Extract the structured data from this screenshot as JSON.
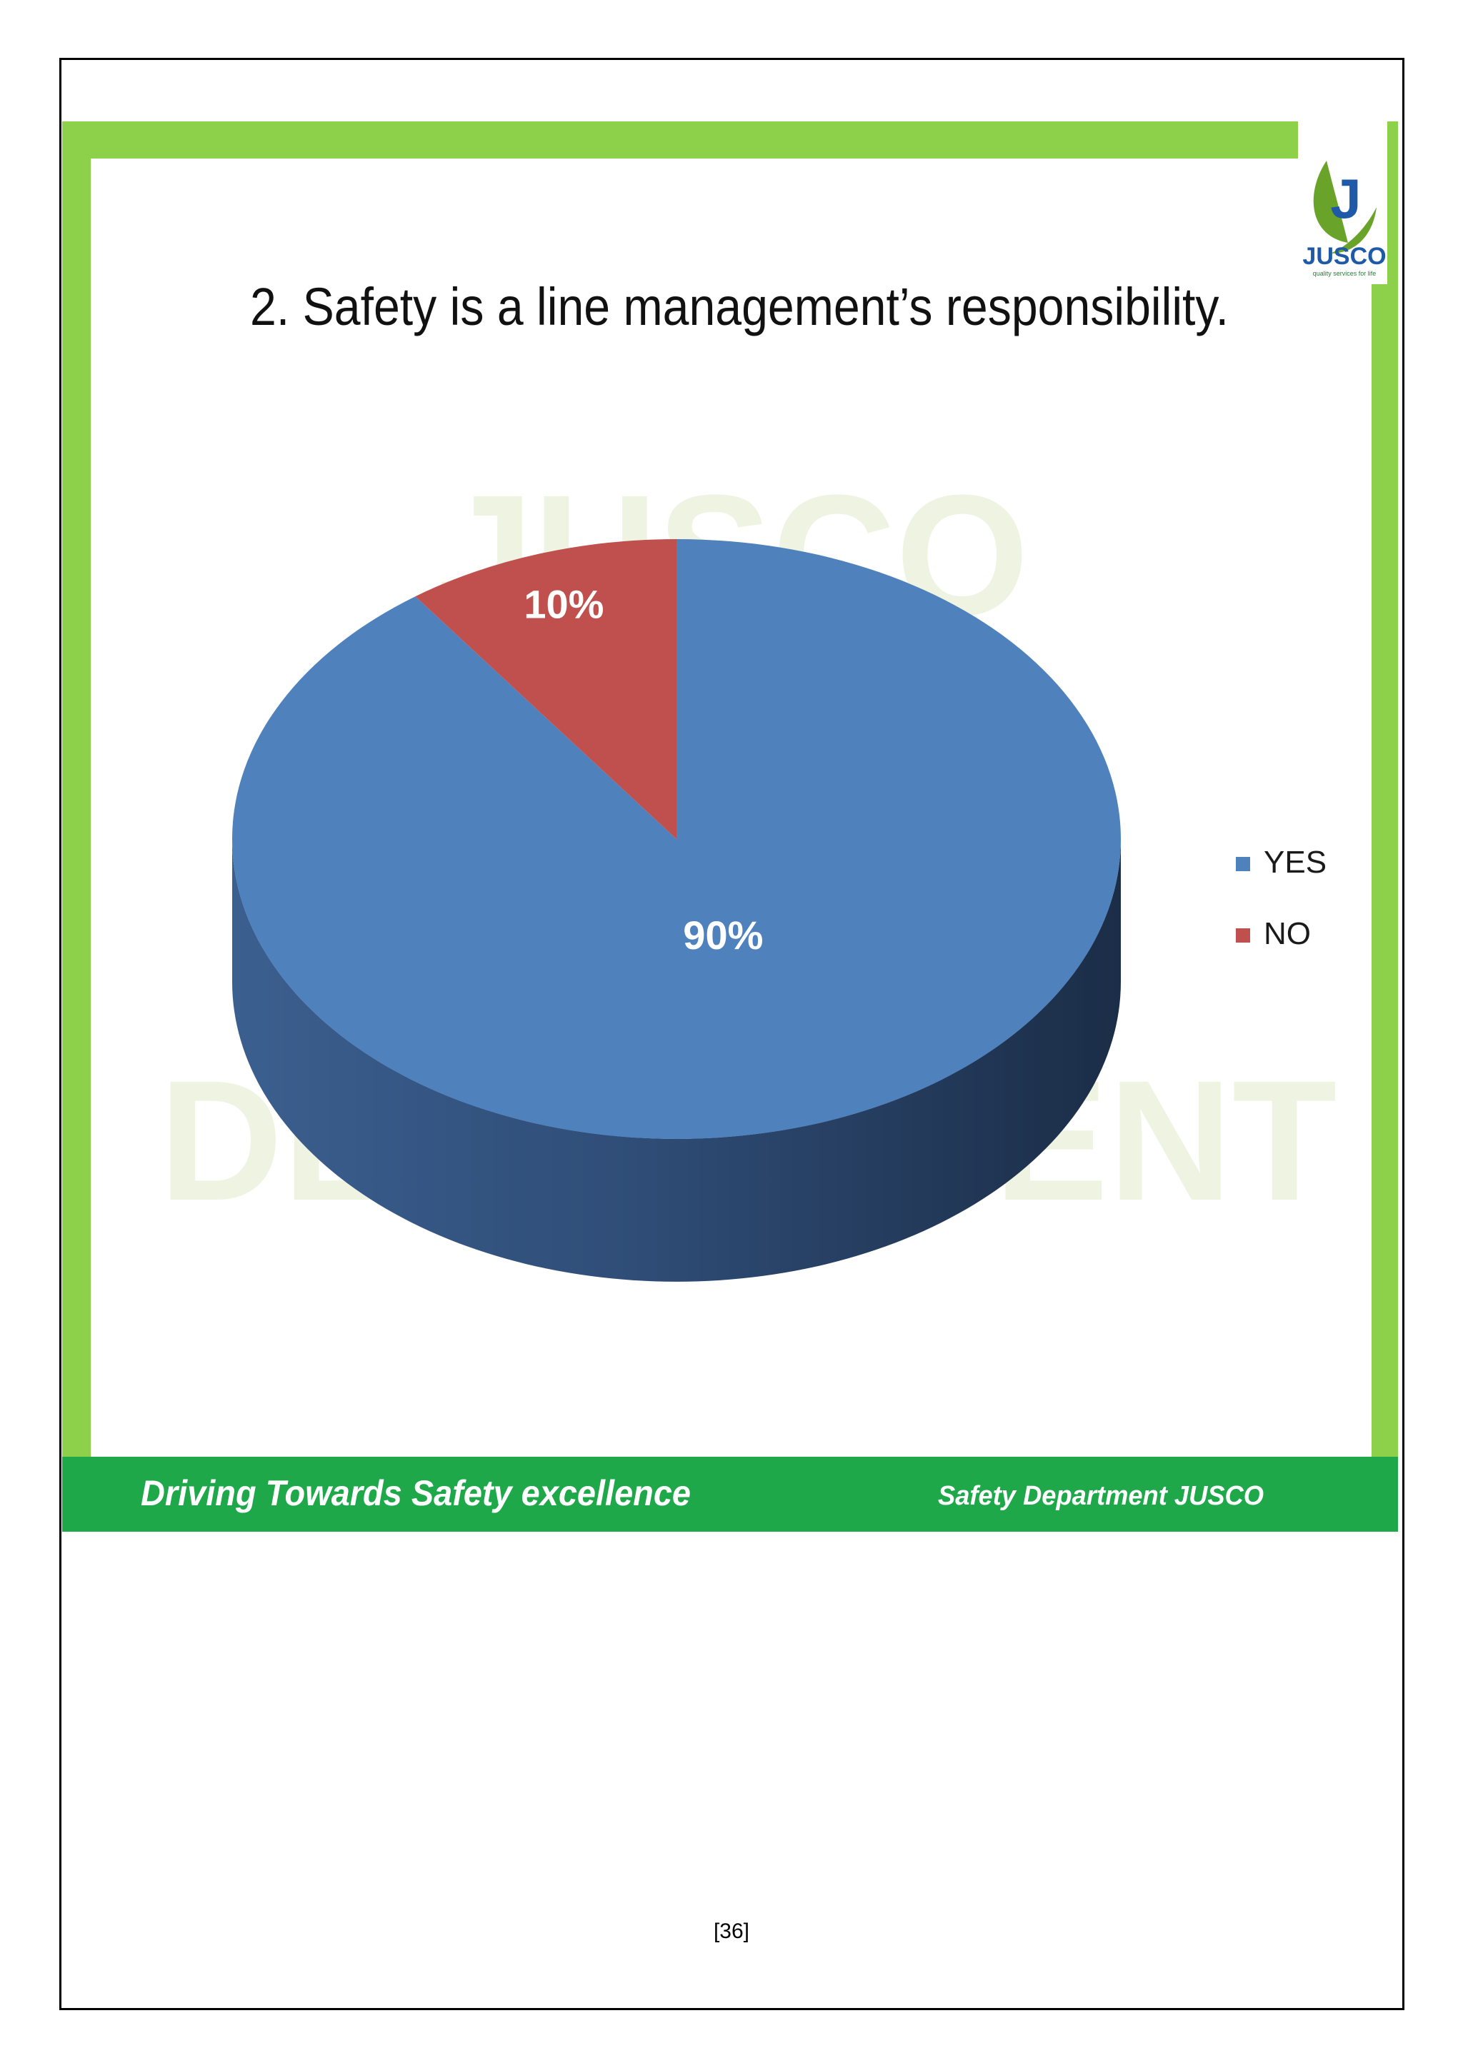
{
  "slide": {
    "title": "2. Safety is a line management’s responsibility.",
    "watermark": [
      "JUSCO",
      "DEPARTMENT"
    ],
    "logo": {
      "text": "JUSCO",
      "tagline": "quality services for life",
      "mark": "J"
    },
    "footer_left": "Driving Towards Safety excellence",
    "footer_right": "Safety Department JUSCO",
    "colors": {
      "frame_green": "#8dd14a",
      "footer_green": "#1fa84a",
      "yes_blue": "#4f81bd",
      "no_red": "#c0504d"
    }
  },
  "chart_data": {
    "type": "pie",
    "title": "2. Safety is a line management’s responsibility.",
    "categories": [
      "YES",
      "NO"
    ],
    "values": [
      90,
      10
    ],
    "labels": [
      "90%",
      "10%"
    ],
    "colors": [
      "#4f81bd",
      "#c0504d"
    ],
    "style": "3d",
    "legend": {
      "placement": "right",
      "entries": [
        "YES",
        "NO"
      ]
    }
  },
  "page": {
    "number": "[36]"
  }
}
